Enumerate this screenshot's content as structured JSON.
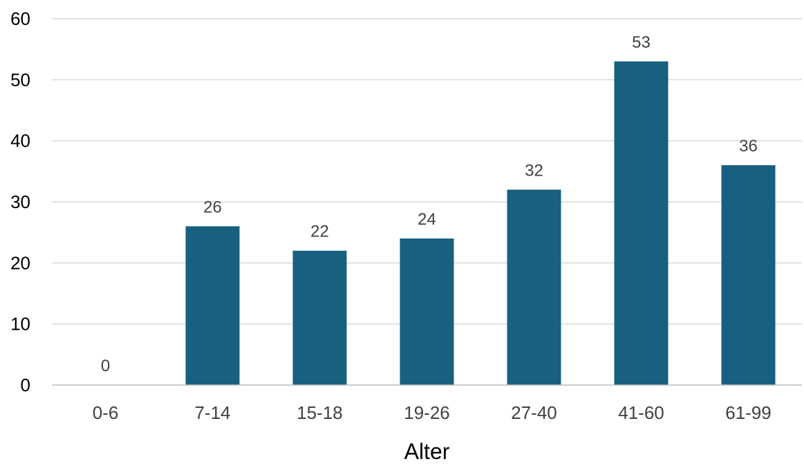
{
  "chart_data": {
    "type": "bar",
    "title": "",
    "xlabel": "Alter",
    "ylabel": "",
    "categories": [
      "0-6",
      "7-14",
      "15-18",
      "19-26",
      "27-40",
      "41-60",
      "61-99"
    ],
    "values": [
      0,
      26,
      22,
      24,
      32,
      53,
      36
    ],
    "ylim": [
      0,
      60
    ],
    "yticks": [
      0,
      10,
      20,
      30,
      40,
      50,
      60
    ],
    "grid": true,
    "legend": "none",
    "bar_color": "#17607f",
    "grid_color": "#d9d9d9",
    "axis_color": "#bfbfbf",
    "text_color": "#404040"
  }
}
